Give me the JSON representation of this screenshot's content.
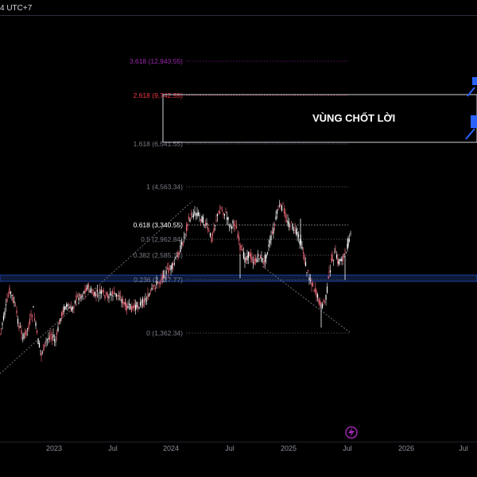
{
  "header": {
    "timezone_fragment": "4 UTC+7"
  },
  "zone": {
    "label": "VÙNG CHỐT LỜI"
  },
  "fib_levels": [
    {
      "ratio": "3.618",
      "price": "12,943.55",
      "text": "3.618 (12,943.55)",
      "color": "#9c27b0"
    },
    {
      "ratio": "2.618",
      "price": "9,742.55",
      "text": "2.618 (9,742.55)",
      "color": "#f23645"
    },
    {
      "ratio": "1.618",
      "price": "6,541.55",
      "text": "1.618 (6,541.55)",
      "color": "#787b86"
    },
    {
      "ratio": "1",
      "price": "4,563.34",
      "text": "1 (4,563.34)",
      "color": "#787b86"
    },
    {
      "ratio": "0.618",
      "price": "3,340.55",
      "text": "0.618 (3,340.55)",
      "color": "#ffffff"
    },
    {
      "ratio": "0.5",
      "price": "2,962.84",
      "text": "0.5 (2,962.84)",
      "color": "#787b86"
    },
    {
      "ratio": "0.382",
      "price": "2,585.13",
      "text": "0.382 (2,585.13)",
      "color": "#787b86"
    },
    {
      "ratio": "0.236",
      "price": "2,117.77",
      "text": "0.236 (2,117.77)",
      "color": "#787b86"
    },
    {
      "ratio": "0",
      "price": "1,362.34",
      "text": "0 (1,362.34)",
      "color": "#787b86"
    }
  ],
  "time_axis": {
    "labels": [
      "2023",
      "Jul",
      "2024",
      "Jul",
      "2025",
      "Jul",
      "2026",
      "Jul"
    ]
  },
  "colors": {
    "candle": "#f06b7b",
    "support_band": "#2962ff",
    "zone_border": "#d1d4dc",
    "arrow": "#2962ff",
    "bolt": "#9c27b0"
  },
  "icons": {
    "target_arrows": "arrow-up-right-icon",
    "bolt": "lightning-icon"
  }
}
